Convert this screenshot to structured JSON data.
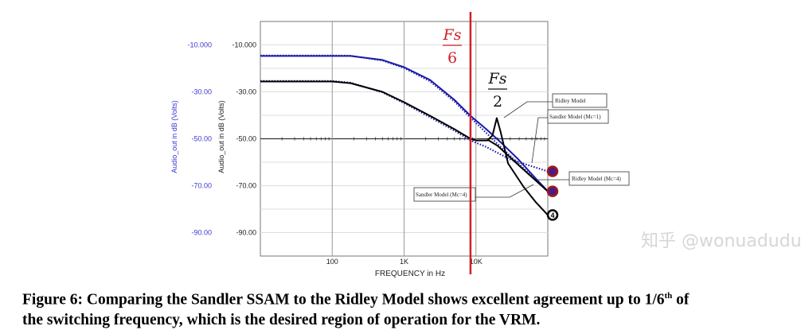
{
  "chart_data": {
    "type": "line",
    "xscale": "log",
    "xlim": [
      10,
      100000
    ],
    "ylim": [
      -100,
      0
    ],
    "grid": true,
    "xlabel": "FREQUENCY in Hz",
    "ylabel_left_outer": "Audio_out in dB (Volts)",
    "ylabel_left_inner": "Audio_out in dB (Volts)",
    "x_ticks": [
      {
        "value": 100,
        "label": "100"
      },
      {
        "value": 1000,
        "label": "1K"
      },
      {
        "value": 10000,
        "label": "10K"
      }
    ],
    "y_ticks_outer": [
      {
        "value": -10,
        "label": "-10.000"
      },
      {
        "value": -30,
        "label": "-30.00"
      },
      {
        "value": -50,
        "label": "-50.00"
      },
      {
        "value": -70,
        "label": "-70.00"
      },
      {
        "value": -90,
        "label": "-90.00"
      }
    ],
    "y_ticks_inner": [
      {
        "value": -10,
        "label": "-10.000"
      },
      {
        "value": -30,
        "label": "-30.00"
      },
      {
        "value": -50,
        "label": "-50.00"
      },
      {
        "value": -70,
        "label": "-70.00"
      },
      {
        "value": -90,
        "label": "-90.00"
      }
    ],
    "colors": {
      "blue": "#1a1aa8",
      "black": "#000000",
      "red": "#d0202a",
      "outer_axis": "#3a3ad0"
    },
    "series": [
      {
        "name": "Ridley Model (Mc=4)",
        "style": "blue-solid",
        "x": [
          10,
          100,
          180,
          500,
          1000,
          2300,
          5000,
          8400,
          13900,
          23000,
          39000,
          65000,
          100000
        ],
        "y": [
          -14.7,
          -14.7,
          -14.7,
          -16.4,
          -19.5,
          -24.9,
          -33.4,
          -40.2,
          -45.9,
          -52,
          -58.8,
          -66.3,
          -72.4
        ]
      },
      {
        "name": "Sandler Model (Mc=4)",
        "style": "blue-dotted",
        "x": [
          10,
          100,
          180,
          500,
          1000,
          2300,
          5000,
          8400,
          13900,
          23000,
          39000,
          65000,
          100000
        ],
        "y": [
          -14.5,
          -14.5,
          -14.6,
          -16.6,
          -19.8,
          -25.5,
          -34,
          -41,
          -47.5,
          -54,
          -60.5,
          -67,
          -72.4
        ]
      },
      {
        "name": "Sandler Model (Mc=1)",
        "style": "blue-dotted",
        "x": [
          10,
          100,
          180,
          500,
          1000,
          2300,
          5000,
          8400,
          13900,
          30000,
          100000
        ],
        "y": [
          -25.4,
          -25.4,
          -26.1,
          -30.2,
          -34.8,
          -40.8,
          -46.5,
          -50.7,
          -53.5,
          -58.8,
          -63.9
        ]
      },
      {
        "name": "Ridley Model",
        "style": "black-solid",
        "x": [
          10,
          100,
          180,
          500,
          1000,
          2300,
          5000,
          8400,
          10000,
          14400,
          17000,
          19500,
          22000,
          28000,
          36000,
          46000,
          68000,
          100000
        ],
        "y": [
          -25.6,
          -25.6,
          -26.3,
          -30,
          -34.4,
          -40.2,
          -45.9,
          -50,
          -50.7,
          -50.7,
          -48.6,
          -41.2,
          -47,
          -60.5,
          -65.6,
          -70.5,
          -77,
          -82.5
        ]
      },
      {
        "name": "",
        "style": "black-solid",
        "x": [
          14400,
          20000,
          40000,
          100000
        ],
        "y": [
          -50.3,
          -53,
          -61.5,
          -72.4
        ]
      }
    ],
    "markers": [
      {
        "label": "",
        "x": 100000,
        "y": -63.9,
        "kind": "blue-red"
      },
      {
        "label": "",
        "x": 100000,
        "y": -72.4,
        "kind": "blue-red"
      },
      {
        "label": "4",
        "x": 100000,
        "y": -82.5,
        "kind": "black"
      }
    ],
    "vertical_line": {
      "x": 8400,
      "color": "#d0202a"
    },
    "annotations": {
      "fs6_num": "Fs",
      "fs6_den": "6",
      "fs2_num": "Fs",
      "fs2_den": "2",
      "ridley": "Ridley Model",
      "sandler1": "Sandler Model (Mc=1)",
      "ridley4": "Ridley Model (Mc=4)",
      "sandler4": "Sandler Model (Mc=4)"
    }
  },
  "caption": {
    "line1_pre": "Figure 6: Comparing the Sandler SSAM to the Ridley Model shows excellent agreement up to 1/6",
    "line1_sup": "th",
    "line1_post": " of",
    "line2": "the switching frequency, which is the desired region of operation for the VRM."
  },
  "watermark": "知乎 @wonuadudu"
}
